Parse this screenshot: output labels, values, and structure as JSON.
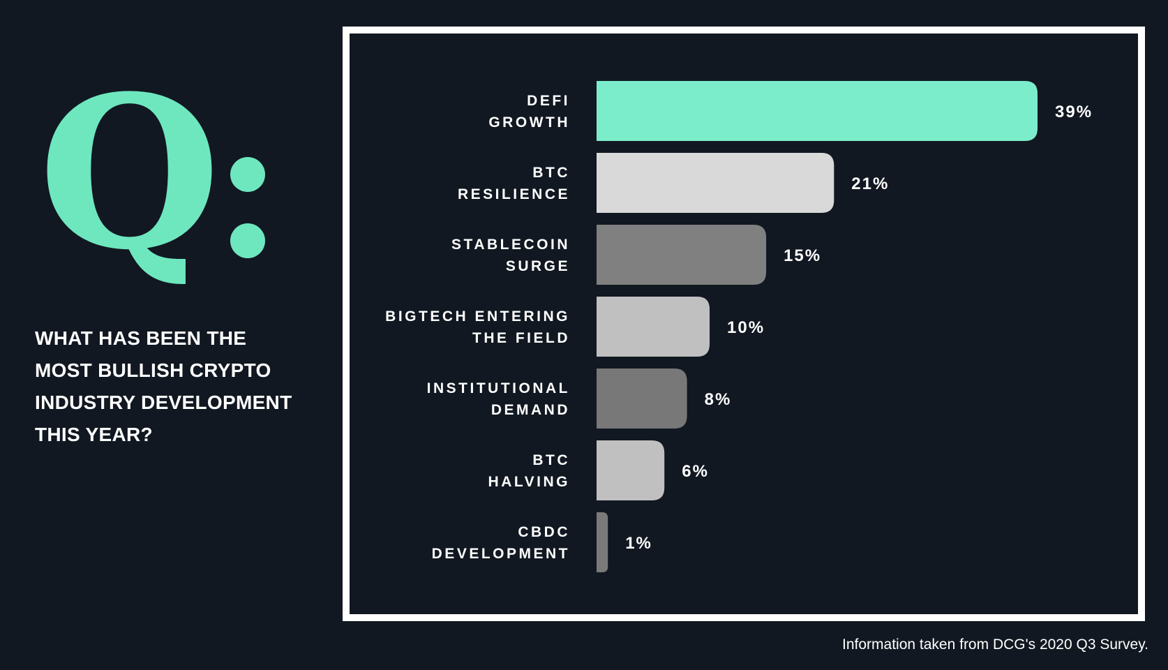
{
  "logo": {
    "text": "Q",
    "color": "#6ee7bf"
  },
  "question": "WHAT HAS BEEN THE\nMOST BULLISH CRYPTO\nINDUSTRY DEVELOPMENT\nTHIS YEAR?",
  "source": "Information taken from DCG's 2020 Q3 Survey.",
  "chart_data": {
    "type": "bar",
    "orientation": "horizontal",
    "categories": [
      [
        "DEFI",
        "GROWTH"
      ],
      [
        "BTC",
        "RESILIENCE"
      ],
      [
        "STABLECOIN",
        "SURGE"
      ],
      [
        "BIGTECH ENTERING",
        "THE FIELD"
      ],
      [
        "INSTITUTIONAL",
        "DEMAND"
      ],
      [
        "BTC",
        "HALVING"
      ],
      [
        "CBDC",
        "DEVELOPMENT"
      ]
    ],
    "values": [
      39,
      21,
      15,
      10,
      8,
      6,
      1
    ],
    "value_labels": [
      "39%",
      "21%",
      "15%",
      "10%",
      "8%",
      "6%",
      "1%"
    ],
    "colors": [
      "#7cedca",
      "#d9d9d9",
      "#808080",
      "#c0c0c0",
      "#787878",
      "#c0c0c0",
      "#7a7a7a"
    ],
    "xlim": [
      0,
      39
    ],
    "grid": false,
    "legend": "none"
  }
}
